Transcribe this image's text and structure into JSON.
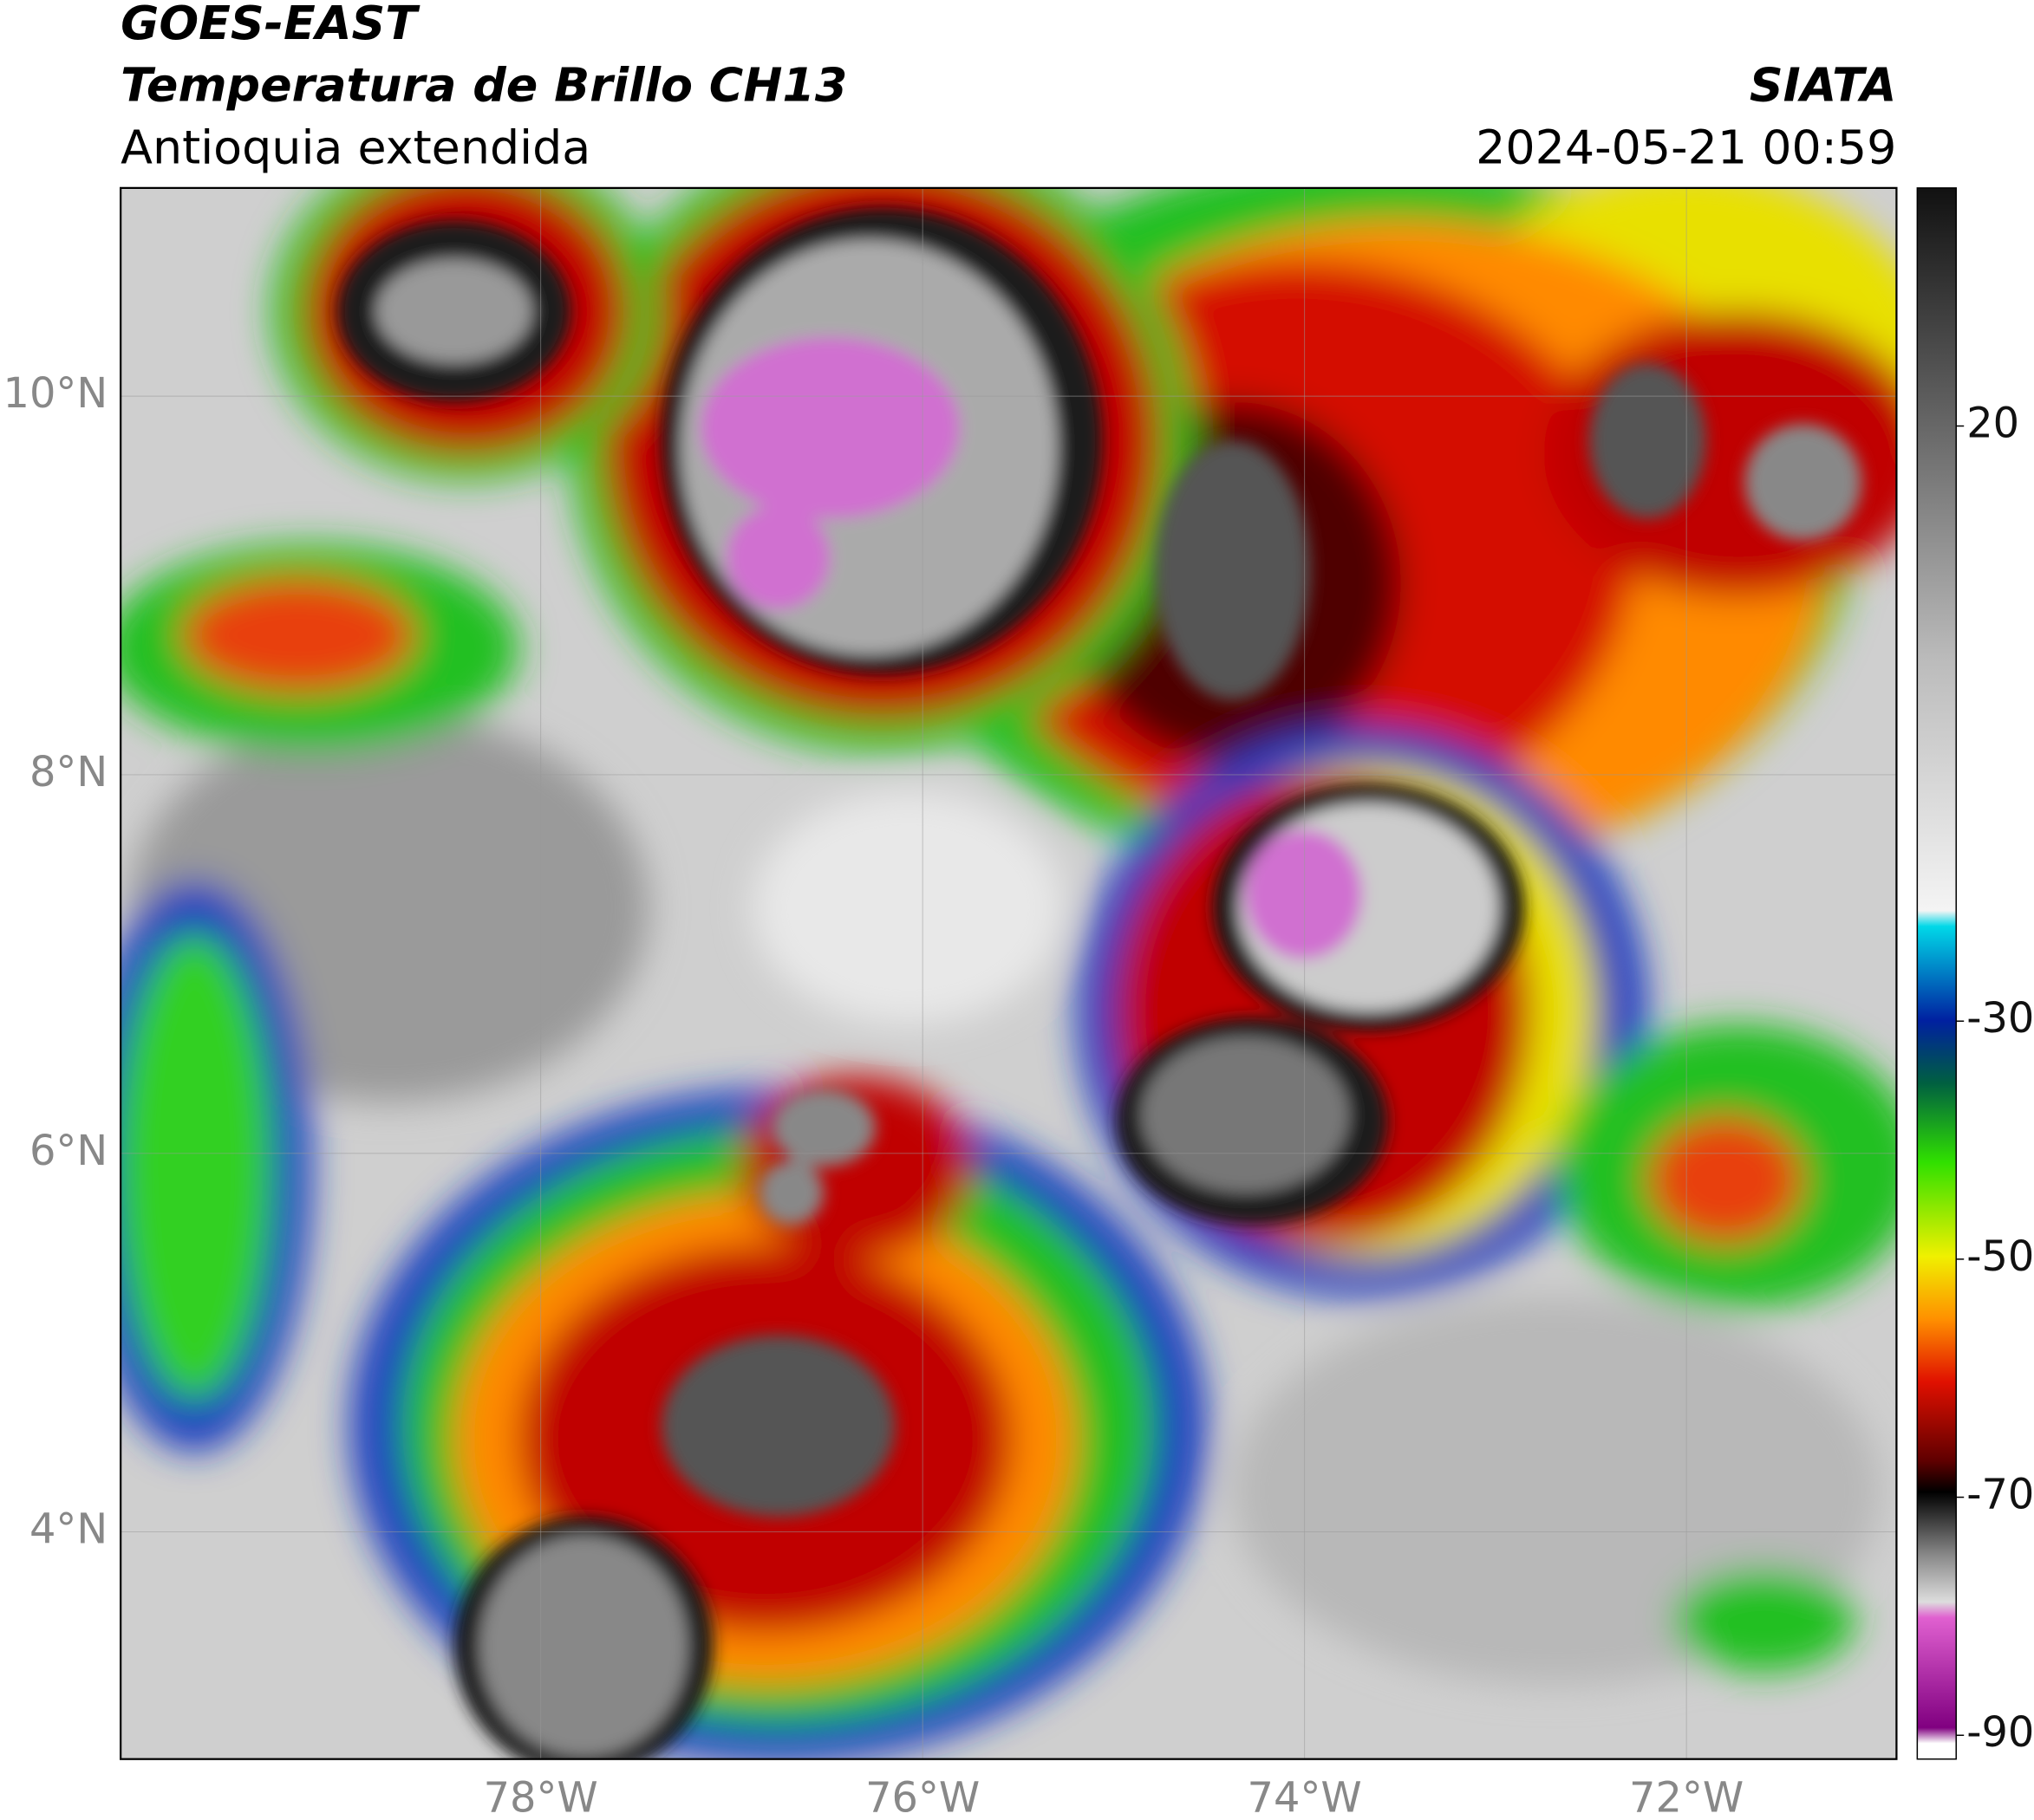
{
  "header": {
    "title": "GOES-EAST",
    "subtitle": "Temperatura de Brillo CH13",
    "region": "Antioquia extendida",
    "source": "SIATA",
    "datetime": "2024-05-21 00:59"
  },
  "map": {
    "xlim": [
      -80.2,
      -70.9
    ],
    "ylim": [
      2.8,
      11.1
    ],
    "xticks": [
      {
        "value": -78,
        "label": "78°W"
      },
      {
        "value": -76,
        "label": "76°W"
      },
      {
        "value": -74,
        "label": "74°W"
      },
      {
        "value": -72,
        "label": "72°W"
      }
    ],
    "yticks": [
      {
        "value": 10,
        "label": "10°N"
      },
      {
        "value": 8,
        "label": "8°N"
      },
      {
        "value": 6,
        "label": "6°N"
      },
      {
        "value": 4,
        "label": "4°N"
      }
    ]
  },
  "colorbar": {
    "lim": [
      -92,
      40
    ],
    "ticks": [
      20,
      -30,
      -50,
      -70,
      -90
    ]
  }
}
